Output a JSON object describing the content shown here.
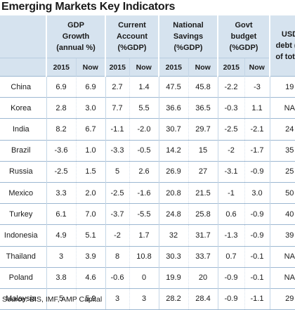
{
  "title": "Emerging Markets Key Indicators",
  "chart_data": {
    "type": "table",
    "groups": [
      "GDP\nGrowth\n(annual %)",
      "Current\nAccount\n(%GDP)",
      "National\nSavings\n(%GDP)",
      "Govt\nbudget\n(%GDP)",
      "USD\ndebt (%\nof total)"
    ],
    "subheaders": [
      "2015",
      "Now",
      "2015",
      "Now",
      "2015",
      "Now",
      "2015",
      "Now"
    ],
    "rows": [
      {
        "country": "China",
        "values": [
          "6.9",
          "6.9",
          "2.7",
          "1.4",
          "47.5",
          "45.8",
          "-2.2",
          "-3",
          "19"
        ]
      },
      {
        "country": "Korea",
        "values": [
          "2.8",
          "3.0",
          "7.7",
          "5.5",
          "36.6",
          "36.5",
          "-0.3",
          "1.1",
          "NA"
        ]
      },
      {
        "country": "India",
        "values": [
          "8.2",
          "6.7",
          "-1.1",
          "-2.0",
          "30.7",
          "29.7",
          "-2.5",
          "-2.1",
          "24"
        ]
      },
      {
        "country": "Brazil",
        "values": [
          "-3.6",
          "1.0",
          "-3.3",
          "-0.5",
          "14.2",
          "15",
          "-2",
          "-1.7",
          "35"
        ]
      },
      {
        "country": "Russia",
        "values": [
          "-2.5",
          "1.5",
          "5",
          "2.6",
          "26.9",
          "27",
          "-3.1",
          "-0.9",
          "25"
        ]
      },
      {
        "country": "Mexico",
        "values": [
          "3.3",
          "2.0",
          "-2.5",
          "-1.6",
          "20.8",
          "21.5",
          "-1",
          "3.0",
          "50"
        ]
      },
      {
        "country": "Turkey",
        "values": [
          "6.1",
          "7.0",
          "-3.7",
          "-5.5",
          "24.8",
          "25.8",
          "0.6",
          "-0.9",
          "40"
        ]
      },
      {
        "country": "Indonesia",
        "values": [
          "4.9",
          "5.1",
          "-2",
          "1.7",
          "32",
          "31.7",
          "-1.3",
          "-0.9",
          "39"
        ]
      },
      {
        "country": "Thailand",
        "values": [
          "3",
          "3.9",
          "8",
          "10.8",
          "30.3",
          "33.7",
          "0.7",
          "-0.1",
          "NA"
        ]
      },
      {
        "country": "Poland",
        "values": [
          "3.8",
          "4.6",
          "-0.6",
          "0",
          "19.9",
          "20",
          "-0.9",
          "-0.1",
          "NA"
        ]
      },
      {
        "country": "Malaysia",
        "values": [
          "5",
          "5.9",
          "3",
          "3",
          "28.2",
          "28.4",
          "-0.9",
          "-1.1",
          "29"
        ]
      }
    ]
  },
  "source": "Source: BIS, IMF, AMP Capital"
}
